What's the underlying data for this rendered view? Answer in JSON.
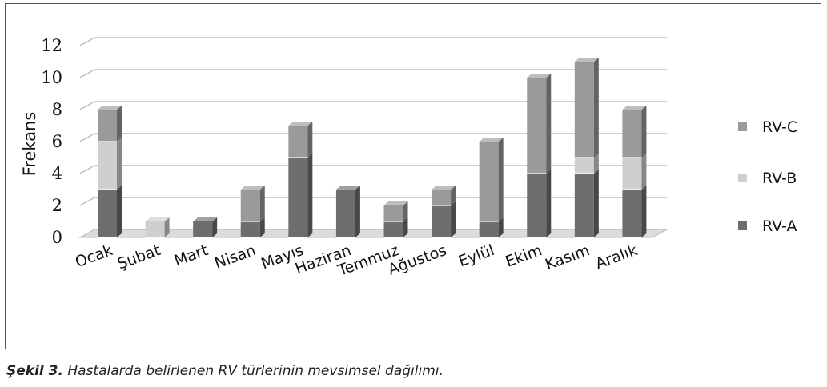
{
  "caption": {
    "label": "Şekil 3.",
    "text": "Hastalarda belirlenen RV türlerinin mevsimsel dağılımı."
  },
  "chart_data": {
    "type": "bar",
    "stacked": true,
    "style": "3d",
    "title": "",
    "xlabel": "",
    "ylabel": "Frekans",
    "ylim": [
      0,
      12
    ],
    "yticks": [
      0,
      2,
      4,
      6,
      8,
      10,
      12
    ],
    "grid": true,
    "legend_position": "right",
    "categories": [
      "Ocak",
      "Şubat",
      "Mart",
      "Nisan",
      "Mayıs",
      "Haziran",
      "Temmuz",
      "Ağustos",
      "Eylül",
      "Ekim",
      "Kasım",
      "Aralık"
    ],
    "series": [
      {
        "name": "RV-A",
        "color": "#6e6e6e",
        "values": [
          3,
          0,
          1,
          1,
          5,
          3,
          1,
          2,
          1,
          4,
          4,
          3
        ]
      },
      {
        "name": "RV-B",
        "color": "#cfcfcf",
        "values": [
          3,
          1,
          0,
          0,
          0,
          0,
          0,
          0,
          0,
          0,
          1,
          2
        ]
      },
      {
        "name": "RV-C",
        "color": "#9a9a9a",
        "values": [
          2,
          0,
          0,
          2,
          2,
          0,
          1,
          1,
          5,
          6,
          6,
          3
        ]
      }
    ],
    "legend_order": [
      "RV-C",
      "RV-B",
      "RV-A"
    ]
  }
}
